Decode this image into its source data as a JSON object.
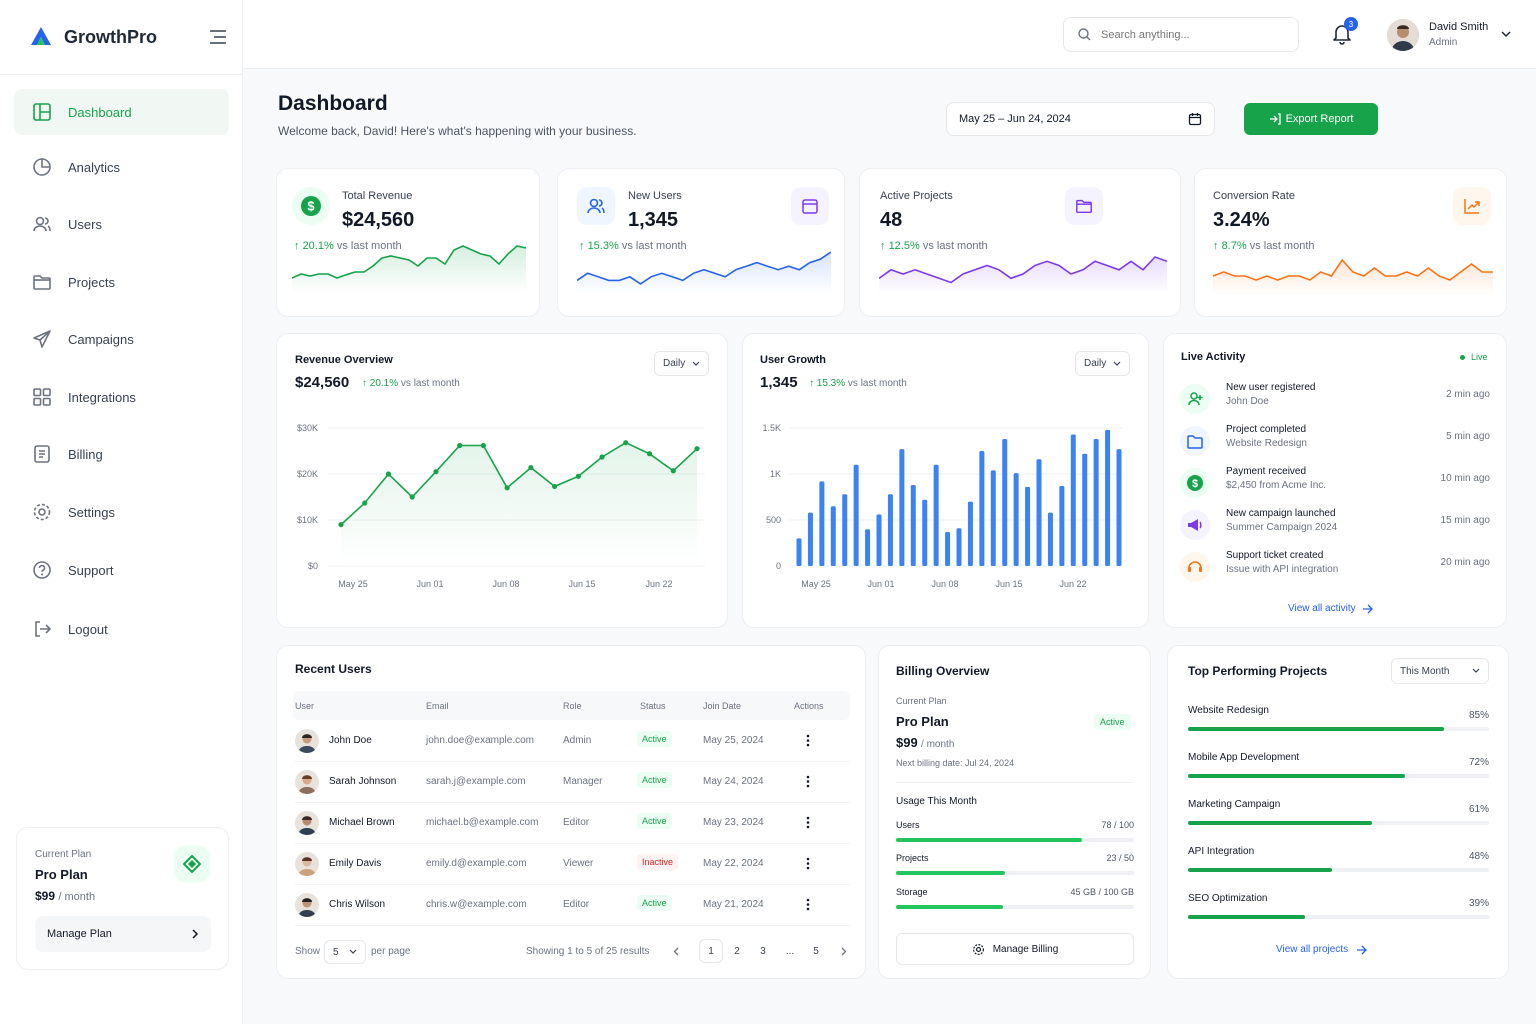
{
  "brand": {
    "name": "GrowthPro"
  },
  "sidebar": {
    "items": [
      {
        "label": "Dashboard",
        "icon": "dashboard-icon"
      },
      {
        "label": "Analytics",
        "icon": "pie-chart-icon"
      },
      {
        "label": "Users",
        "icon": "users-icon"
      },
      {
        "label": "Projects",
        "icon": "folder-icon"
      },
      {
        "label": "Campaigns",
        "icon": "send-icon"
      },
      {
        "label": "Integrations",
        "icon": "grid-icon"
      },
      {
        "label": "Billing",
        "icon": "receipt-icon"
      },
      {
        "label": "Settings",
        "icon": "gear-icon"
      },
      {
        "label": "Support",
        "icon": "help-icon"
      },
      {
        "label": "Logout",
        "icon": "logout-icon"
      }
    ],
    "plan": {
      "label": "Current Plan",
      "name": "Pro Plan",
      "price": "$99",
      "period": "/ month",
      "button": "Manage Plan"
    }
  },
  "topbar": {
    "search_placeholder": "Search anything...",
    "notifications": "3",
    "user_name": "David Smith",
    "user_role": "Admin"
  },
  "page": {
    "title": "Dashboard",
    "subtitle": "Welcome back, David! Here's what's happening with your business.",
    "date_range": "May 25 – Jun 24, 2024",
    "export_label": "Export Report"
  },
  "stats": [
    {
      "title": "Total Revenue",
      "value": "$24,560",
      "change": "20.1%",
      "suffix": "vs last month",
      "color": "#16a34a"
    },
    {
      "title": "New Users",
      "value": "1,345",
      "change": "15.3%",
      "suffix": "vs last month",
      "color": "#2563eb"
    },
    {
      "title": "Active Projects",
      "value": "48",
      "change": "12.5%",
      "suffix": "vs last month",
      "color": "#7c3aed"
    },
    {
      "title": "Conversion Rate",
      "value": "3.24%",
      "change": "8.7%",
      "suffix": "vs last month",
      "color": "#f97316"
    }
  ],
  "revenue": {
    "title": "Revenue Overview",
    "value": "$24,560",
    "change": "20.1%",
    "suffix": "vs last month",
    "period": "Daily"
  },
  "growth": {
    "title": "User Growth",
    "value": "1,345",
    "change": "15.3%",
    "suffix": "vs last month",
    "period": "Daily"
  },
  "chart_data": [
    {
      "type": "line",
      "title": "Revenue Overview",
      "x": [
        "May 25",
        "May 27",
        "May 29",
        "May 31",
        "Jun 02",
        "Jun 04",
        "Jun 06",
        "Jun 07",
        "Jun 09",
        "Jun 11",
        "Jun 13",
        "Jun 15",
        "Jun 17",
        "Jun 19",
        "Jun 21",
        "Jun 23"
      ],
      "values": [
        9000,
        13700,
        20000,
        15000,
        20500,
        26200,
        26200,
        17000,
        21400,
        17300,
        19500,
        23700,
        26800,
        24400,
        20700,
        25500
      ],
      "ylim": [
        0,
        30000
      ],
      "y_ticks": [
        "$0",
        "$10K",
        "$20K",
        "$30K"
      ],
      "x_ticks": [
        "May 25",
        "Jun 01",
        "Jun 08",
        "Jun 15",
        "Jun 22"
      ],
      "color": "#16a34a"
    },
    {
      "type": "bar",
      "title": "User Growth",
      "values": [
        300,
        580,
        920,
        650,
        780,
        1100,
        400,
        560,
        780,
        1270,
        880,
        720,
        1100,
        370,
        410,
        700,
        1250,
        1040,
        1380,
        1010,
        860,
        1160,
        580,
        870,
        1430,
        1220,
        1380,
        1480,
        1270
      ],
      "ylim": [
        0,
        1500
      ],
      "y_ticks": [
        "0",
        "500",
        "1K",
        "1.5K"
      ],
      "x_ticks": [
        "May 25",
        "Jun 01",
        "Jun 08",
        "Jun 15",
        "Jun 22"
      ],
      "color": "#3b82f6"
    },
    {
      "type": "area",
      "title": "Total Revenue",
      "values": [
        3,
        4,
        3.5,
        4,
        4,
        3,
        3.8,
        4.5,
        4.5,
        6,
        8,
        8.5,
        8,
        7.5,
        6,
        8,
        8,
        6.5,
        10,
        11,
        10,
        9,
        8.5,
        6.5,
        9,
        11,
        10.5
      ],
      "color": "#16a34a"
    },
    {
      "type": "area",
      "title": "New Users",
      "values": [
        3,
        5,
        4,
        3,
        3,
        4,
        2,
        4,
        5,
        4,
        3,
        5,
        6,
        5,
        4,
        6,
        7,
        8,
        7,
        6,
        7,
        6,
        8,
        9,
        11
      ],
      "color": "#2563eb"
    },
    {
      "type": "area",
      "title": "Active Projects",
      "values": [
        3,
        5,
        4,
        5,
        4,
        3,
        2,
        4,
        5,
        6,
        5,
        3,
        4,
        6,
        7,
        6,
        4,
        5,
        7,
        6,
        5,
        7,
        5,
        8,
        7
      ],
      "color": "#7c3aed"
    },
    {
      "type": "area",
      "title": "Conversion Rate",
      "values": [
        4,
        5,
        4,
        4,
        3,
        4,
        3,
        4,
        4,
        3,
        5,
        4,
        8,
        5,
        4,
        6,
        4,
        4,
        5,
        4,
        6,
        4,
        3,
        5,
        7,
        5,
        5
      ],
      "color": "#f97316"
    }
  ],
  "activity": {
    "title": "Live Activity",
    "live": "Live",
    "items": [
      {
        "title": "New user registered",
        "sub": "John Doe",
        "time": "2 min ago",
        "icon": "user-plus-icon",
        "bg": "#ecfdf3",
        "fg": "#16a34a"
      },
      {
        "title": "Project completed",
        "sub": "Website Redesign",
        "time": "5 min ago",
        "icon": "folder-icon",
        "bg": "#eff6ff",
        "fg": "#2563eb"
      },
      {
        "title": "Payment received",
        "sub": "$2,450 from Acme Inc.",
        "time": "10 min ago",
        "icon": "dollar-icon",
        "bg": "#ecfdf3",
        "fg": "#16a34a"
      },
      {
        "title": "New campaign launched",
        "sub": "Summer Campaign 2024",
        "time": "15 min ago",
        "icon": "megaphone-icon",
        "bg": "#f5f3ff",
        "fg": "#7c3aed"
      },
      {
        "title": "Support ticket created",
        "sub": "Issue with API integration",
        "time": "20 min ago",
        "icon": "headset-icon",
        "bg": "#fff7ed",
        "fg": "#f97316"
      }
    ],
    "view_all": "View all activity"
  },
  "recent_users": {
    "title": "Recent Users",
    "columns": [
      "User",
      "Email",
      "Role",
      "Status",
      "Join Date",
      "Actions"
    ],
    "rows": [
      {
        "name": "John Doe",
        "email": "john.doe@example.com",
        "role": "Admin",
        "status": "Active",
        "date": "May 25, 2024"
      },
      {
        "name": "Sarah Johnson",
        "email": "sarah.j@example.com",
        "role": "Manager",
        "status": "Active",
        "date": "May 24, 2024"
      },
      {
        "name": "Michael Brown",
        "email": "michael.b@example.com",
        "role": "Editor",
        "status": "Active",
        "date": "May 23, 2024"
      },
      {
        "name": "Emily Davis",
        "email": "emily.d@example.com",
        "role": "Viewer",
        "status": "Inactive",
        "date": "May 22, 2024"
      },
      {
        "name": "Chris Wilson",
        "email": "chris.w@example.com",
        "role": "Editor",
        "status": "Active",
        "date": "May 21, 2024"
      }
    ],
    "show": "Show",
    "per_page_value": "5",
    "per_page": "per page",
    "showing": "Showing 1 to 5 of 25 results",
    "pages": [
      "1",
      "2",
      "3",
      "...",
      "5"
    ]
  },
  "billing": {
    "title": "Billing Overview",
    "plan_label": "Current Plan",
    "plan_name": "Pro Plan",
    "status": "Active",
    "price": "$99",
    "period": "/ month",
    "next": "Next billing date: Jul 24, 2024",
    "usage_title": "Usage This Month",
    "usage": [
      {
        "label": "Users",
        "value": "78 / 100",
        "fraction": 0.78
      },
      {
        "label": "Projects",
        "value": "23 / 50",
        "fraction": 0.46
      },
      {
        "label": "Storage",
        "value": "45 GB / 100 GB",
        "fraction": 0.45
      }
    ],
    "button": "Manage Billing"
  },
  "top_projects": {
    "title": "Top Performing Projects",
    "period": "This Month",
    "items": [
      {
        "name": "Website Redesign",
        "percent": "85%",
        "fraction": 0.85
      },
      {
        "name": "Mobile App Development",
        "percent": "72%",
        "fraction": 0.72
      },
      {
        "name": "Marketing Campaign",
        "percent": "61%",
        "fraction": 0.61
      },
      {
        "name": "API Integration",
        "percent": "48%",
        "fraction": 0.48
      },
      {
        "name": "SEO Optimization",
        "percent": "39%",
        "fraction": 0.39
      }
    ],
    "view_all": "View all projects"
  }
}
